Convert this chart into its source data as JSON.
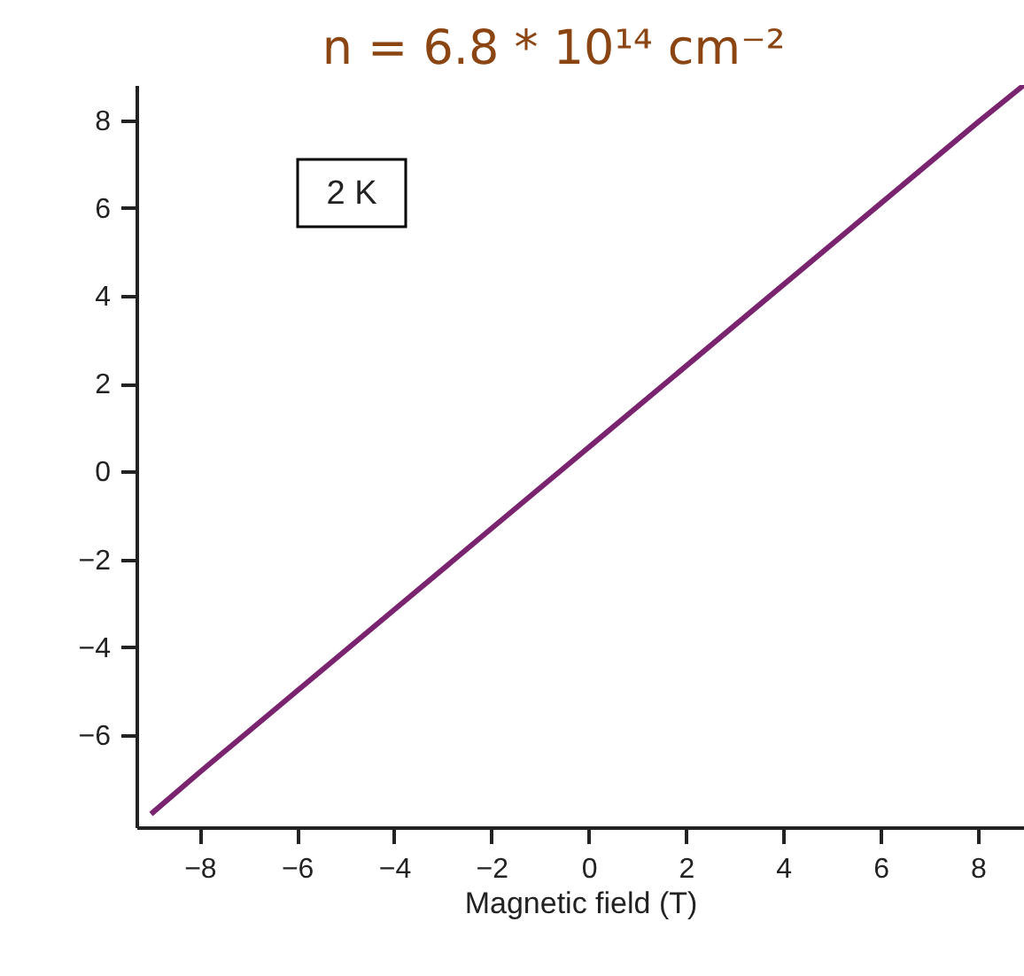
{
  "chart_data": {
    "type": "line",
    "title": "n = 6.8 * 10¹⁴ cm⁻²",
    "xlabel": "Magnetic field (T)",
    "annotations": [
      "2 K"
    ],
    "x": [
      -9.0,
      -8,
      -6,
      -4,
      -2,
      0,
      2,
      4,
      6,
      8,
      8.95
    ],
    "series": [
      {
        "color": "#7a2470",
        "values": [
          -7.8,
          -6.85,
          -5.0,
          -3.15,
          -1.3,
          0.55,
          2.4,
          4.25,
          6.1,
          7.95,
          8.8
        ]
      }
    ],
    "xlim": [
      -9.3,
      8.95
    ],
    "ylim": [
      -8.1,
      8.8
    ],
    "xticks": [
      -8,
      -6,
      -4,
      -2,
      0,
      2,
      4,
      6,
      8
    ],
    "yticks": [
      -6,
      -4,
      -2,
      0,
      2,
      4,
      6,
      8
    ],
    "grid": false,
    "legend": false,
    "marker": "none",
    "line_style": "solid"
  }
}
